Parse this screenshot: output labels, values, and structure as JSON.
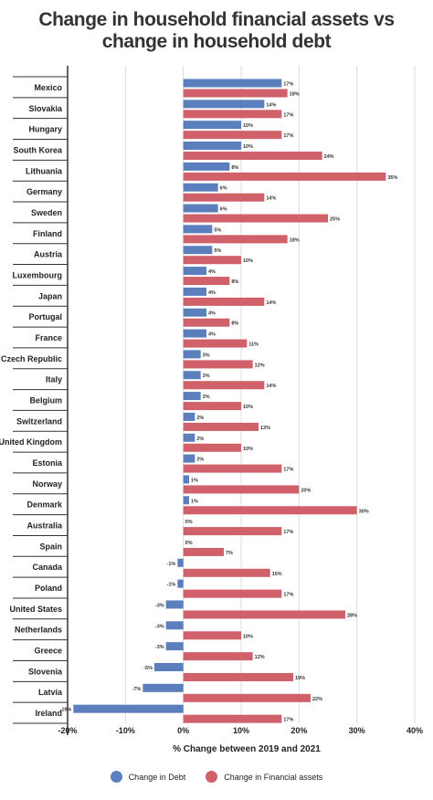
{
  "chart_data": {
    "type": "bar",
    "orientation": "horizontal",
    "title_lines": [
      "Change in household financial assets vs",
      "change in household debt"
    ],
    "xlabel": "% Change between 2019 and 2021",
    "xlim": [
      -20,
      40
    ],
    "xticks": [
      -20,
      -10,
      0,
      10,
      20,
      30,
      40
    ],
    "xtick_labels": [
      "-20%",
      "-10%",
      "0%",
      "10%",
      "20%",
      "30%",
      "40%"
    ],
    "grid": true,
    "legend_position": "bottom",
    "categories": [
      "Mexico",
      "Slovakia",
      "Hungary",
      "South Korea",
      "Lithuania",
      "Germany",
      "Sweden",
      "Finland",
      "Austria",
      "Luxembourg",
      "Japan",
      "Portugal",
      "France",
      "Czech Republic",
      "Italy",
      "Belgium",
      "Switzerland",
      "United Kingdom",
      "Estonia",
      "Norway",
      "Denmark",
      "Australia",
      "Spain",
      "Canada",
      "Poland",
      "United States",
      "Netherlands",
      "Greece",
      "Slovenia",
      "Latvia",
      "Ireland"
    ],
    "series": [
      {
        "name": "Change in Debt",
        "color": "#5b7fbd",
        "values": [
          17,
          14,
          10,
          10,
          8,
          6,
          6,
          5,
          5,
          4,
          4,
          4,
          4,
          3,
          3,
          3,
          2,
          2,
          2,
          1,
          1,
          0,
          0,
          -1,
          -1,
          -3,
          -3,
          -3,
          -5,
          -7,
          -19
        ],
        "labels": [
          "17%",
          "14%",
          "10%",
          "10%",
          "8%",
          "6%",
          "6%",
          "5%",
          "5%",
          "4%",
          "4%",
          "4%",
          "4%",
          "3%",
          "3%",
          "3%",
          "2%",
          "2%",
          "2%",
          "1%",
          "1%",
          "0%",
          "0%",
          "-1%",
          "-1%",
          "-3%",
          "-3%",
          "-3%",
          "-5%",
          "-7%",
          "-19%"
        ]
      },
      {
        "name": "Change in Financial assets",
        "color": "#d0606a",
        "values": [
          18,
          17,
          17,
          24,
          35,
          14,
          25,
          18,
          10,
          8,
          14,
          8,
          11,
          12,
          14,
          10,
          13,
          10,
          17,
          20,
          30,
          17,
          7,
          15,
          17,
          28,
          10,
          12,
          19,
          22,
          17
        ],
        "labels": [
          "18%",
          "17%",
          "17%",
          "24%",
          "35%",
          "14%",
          "25%",
          "18%",
          "10%",
          "8%",
          "14%",
          "8%",
          "11%",
          "12%",
          "14%",
          "10%",
          "13%",
          "10%",
          "17%",
          "20%",
          "30%",
          "17%",
          "7%",
          "15%",
          "17%",
          "28%",
          "10%",
          "12%",
          "19%",
          "22%",
          "17%"
        ]
      }
    ]
  }
}
